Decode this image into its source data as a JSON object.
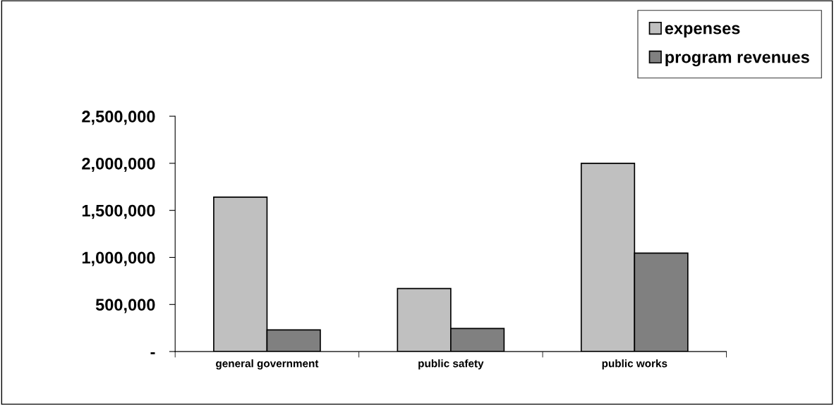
{
  "chart_data": {
    "type": "bar",
    "categories": [
      "general government",
      "public safety",
      "public works"
    ],
    "series": [
      {
        "name": "expenses",
        "color": "#c0c0c0",
        "values": [
          1640000,
          670000,
          2000000
        ]
      },
      {
        "name": "program revenues",
        "color": "#808080",
        "values": [
          230000,
          245000,
          1045000
        ]
      }
    ],
    "ylim": [
      0,
      2500000
    ],
    "yticks": [
      {
        "value": 0,
        "label": "-"
      },
      {
        "value": 500000,
        "label": "500,000"
      },
      {
        "value": 1000000,
        "label": "1,000,000"
      },
      {
        "value": 1500000,
        "label": "1,500,000"
      },
      {
        "value": 2000000,
        "label": "2,000,000"
      },
      {
        "value": 2500000,
        "label": "2,500,000"
      }
    ],
    "grid": false,
    "legend": "top right"
  }
}
